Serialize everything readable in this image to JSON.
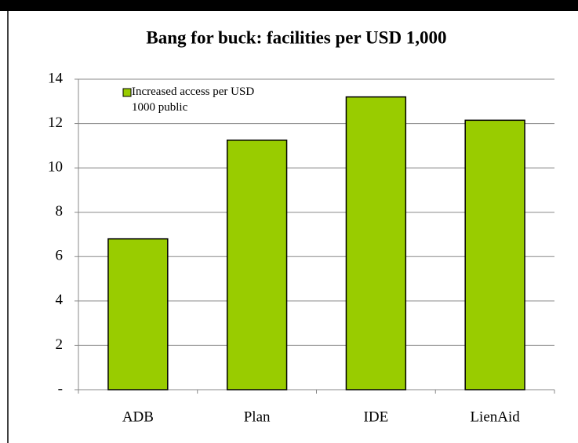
{
  "chart_data": {
    "type": "bar",
    "title": "Bang for buck: facilities per USD 1,000",
    "categories": [
      "ADB",
      "Plan",
      "IDE",
      "LienAid"
    ],
    "series": [
      {
        "name": "Increased access per USD 1000 public",
        "color": "#99cc00",
        "values": [
          6.8,
          11.25,
          13.2,
          12.15
        ]
      }
    ],
    "ylim": [
      0,
      14
    ],
    "yticks": [
      {
        "value": 0,
        "label": "-"
      },
      2,
      4,
      6,
      8,
      10,
      12,
      14
    ],
    "grid": true,
    "legend": "top-left"
  }
}
